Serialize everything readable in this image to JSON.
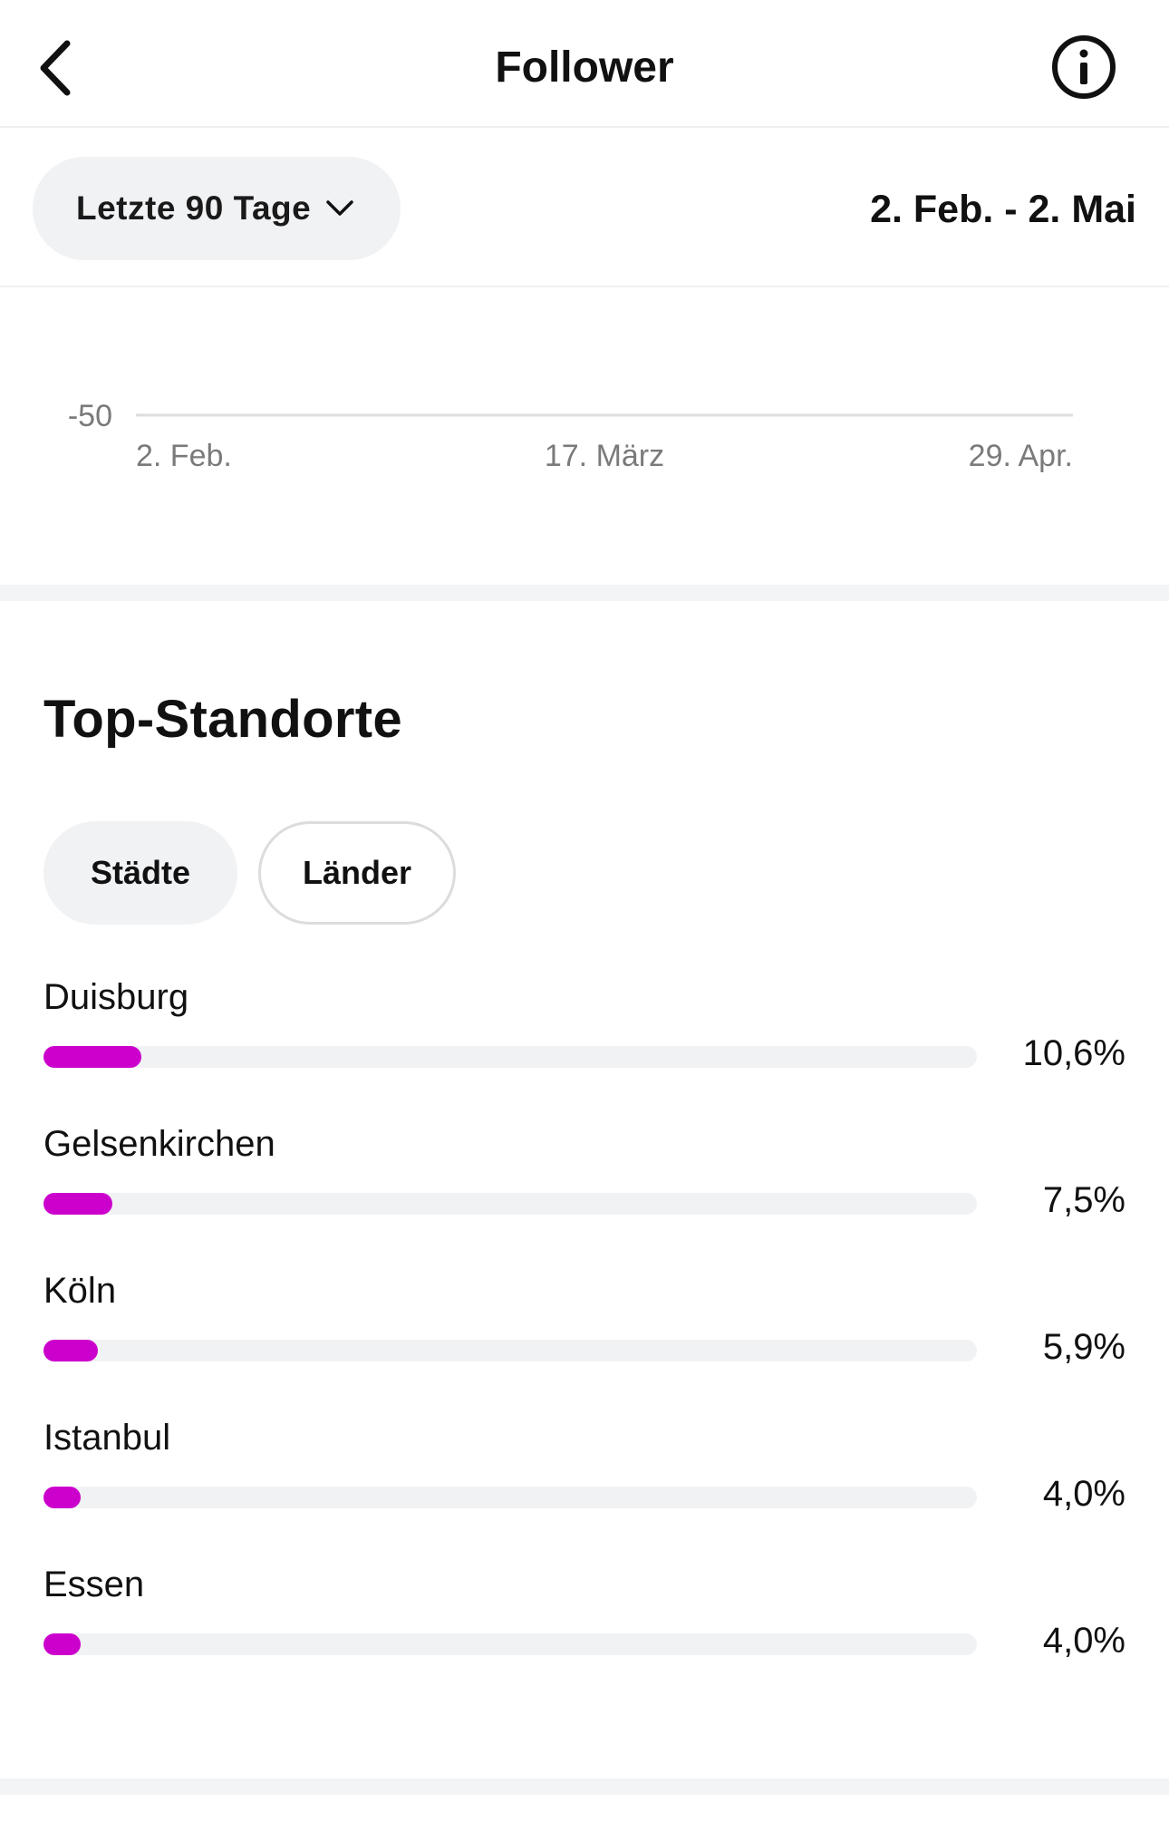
{
  "header": {
    "title": "Follower",
    "back_icon": "chevron-left-icon",
    "info_icon": "info-icon"
  },
  "filter": {
    "range_label": "Letzte 90 Tage",
    "date_range": "2. Feb. - 2. Mai"
  },
  "chart_data": {
    "type": "line",
    "title": "",
    "xlabel": "",
    "ylabel": "",
    "y_tick_labels": [
      "-50"
    ],
    "x_tick_labels": [
      "2. Feb.",
      "17. März",
      "29. Apr."
    ],
    "series": []
  },
  "top_locations": {
    "title": "Top-Standorte",
    "tabs": [
      {
        "label": "Städte",
        "active": true
      },
      {
        "label": "Länder",
        "active": false
      }
    ],
    "items": [
      {
        "name": "Duisburg",
        "value_label": "10,6%",
        "percent": 10.6
      },
      {
        "name": "Gelsenkirchen",
        "value_label": "7,5%",
        "percent": 7.5
      },
      {
        "name": "Köln",
        "value_label": "5,9%",
        "percent": 5.9
      },
      {
        "name": "Istanbul",
        "value_label": "4,0%",
        "percent": 4.0
      },
      {
        "name": "Essen",
        "value_label": "4,0%",
        "percent": 4.0
      }
    ],
    "bar_color": "#cc00cc",
    "track_color": "#f1f2f4"
  }
}
